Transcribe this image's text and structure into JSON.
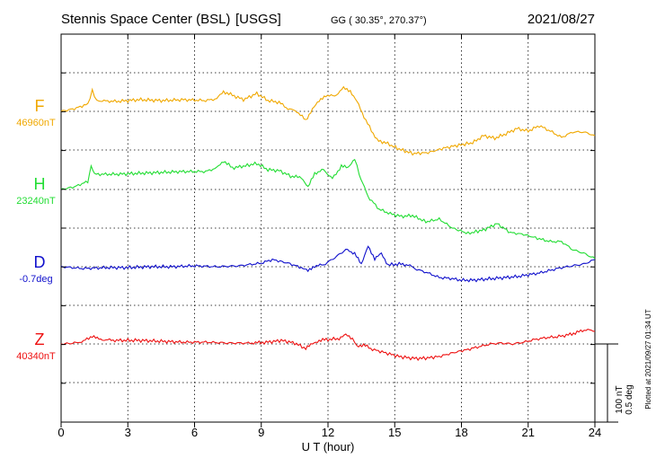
{
  "header": {
    "station": "Stennis Space Center (BSL)",
    "agency": "[USGS]",
    "coords": "GG ( 30.35°, 270.37°)",
    "date": "2021/08/27"
  },
  "scale_bar": {
    "label1": "100 nT",
    "label2": "0.5 deg"
  },
  "plotted_note": "Plotted at 2021/09/27 01:34 UT",
  "chart_data": {
    "type": "line",
    "xlabel": "U T (hour)",
    "xlim": [
      0,
      24
    ],
    "xticks": [
      0,
      3,
      6,
      9,
      12,
      15,
      18,
      21,
      24
    ],
    "ylim": [
      -2.5,
      3.0
    ],
    "series": [
      {
        "name": "F",
        "baseline_label": "46960nT",
        "color": "#f0a800",
        "x": [
          0,
          0.6,
          1.2,
          1.4,
          1.6,
          2.5,
          3.5,
          4.5,
          5.5,
          6.5,
          7.0,
          7.3,
          7.7,
          8.2,
          8.8,
          9.3,
          9.8,
          10.2,
          10.6,
          11.0,
          11.3,
          11.6,
          11.9,
          12.3,
          12.7,
          13.0,
          13.3,
          13.7,
          14.2,
          14.6,
          15.2,
          15.8,
          16.5,
          17.2,
          17.8,
          18.5,
          19.0,
          19.5,
          20.0,
          20.5,
          21.0,
          21.5,
          22.0,
          22.5,
          23.0,
          23.5,
          24.0
        ],
        "values": [
          0.0,
          0.03,
          0.08,
          0.23,
          0.12,
          0.11,
          0.13,
          0.12,
          0.13,
          0.12,
          0.14,
          0.22,
          0.18,
          0.13,
          0.2,
          0.12,
          0.1,
          0.03,
          0.0,
          -0.1,
          0.03,
          0.11,
          0.18,
          0.17,
          0.26,
          0.23,
          0.11,
          -0.1,
          -0.32,
          -0.35,
          -0.42,
          -0.47,
          -0.46,
          -0.41,
          -0.38,
          -0.35,
          -0.27,
          -0.3,
          -0.25,
          -0.19,
          -0.22,
          -0.16,
          -0.22,
          -0.29,
          -0.23,
          -0.23,
          -0.27
        ]
      },
      {
        "name": "H",
        "baseline_label": "23240nT",
        "color": "#22dd33",
        "x": [
          0,
          0.6,
          1.2,
          1.35,
          1.5,
          2.5,
          3.5,
          4.5,
          5.5,
          6.5,
          7.0,
          7.3,
          7.7,
          8.2,
          8.8,
          9.3,
          9.8,
          10.4,
          10.8,
          11.1,
          11.4,
          11.8,
          12.2,
          12.6,
          12.9,
          13.2,
          13.4,
          13.8,
          14.3,
          14.8,
          15.3,
          15.8,
          16.4,
          17.0,
          17.6,
          18.3,
          19.0,
          19.6,
          20.2,
          20.8,
          21.5,
          22.0,
          22.5,
          23.0,
          23.5,
          24.0
        ],
        "values": [
          0.0,
          0.03,
          0.09,
          0.27,
          0.17,
          0.17,
          0.18,
          0.19,
          0.2,
          0.2,
          0.24,
          0.32,
          0.24,
          0.26,
          0.29,
          0.22,
          0.21,
          0.14,
          0.14,
          0.02,
          0.18,
          0.22,
          0.12,
          0.26,
          0.24,
          0.35,
          0.17,
          -0.08,
          -0.22,
          -0.27,
          -0.3,
          -0.29,
          -0.36,
          -0.33,
          -0.43,
          -0.49,
          -0.45,
          -0.38,
          -0.48,
          -0.5,
          -0.55,
          -0.58,
          -0.58,
          -0.67,
          -0.71,
          -0.77
        ]
      },
      {
        "name": "D",
        "baseline_label": "-0.7deg",
        "color": "#1010cc",
        "x": [
          0,
          1,
          2,
          3,
          4,
          5,
          6,
          7,
          8,
          9,
          9.5,
          10.2,
          10.8,
          11.1,
          11.4,
          11.8,
          12.3,
          12.8,
          13.2,
          13.5,
          13.8,
          14.1,
          14.4,
          14.7,
          15.2,
          15.6,
          16.0,
          16.5,
          17.0,
          17.5,
          18.0,
          18.5,
          19.0,
          19.5,
          20.0,
          20.5,
          21.0,
          21.5,
          22.0,
          22.5,
          23.0,
          23.5,
          24.0
        ],
        "values": [
          0.0,
          -0.02,
          -0.01,
          -0.01,
          0.0,
          0.0,
          0.01,
          0.0,
          0.01,
          0.04,
          0.08,
          0.04,
          -0.01,
          -0.05,
          0.01,
          0.02,
          0.1,
          0.19,
          0.15,
          0.02,
          0.24,
          0.08,
          0.15,
          0.02,
          0.03,
          0.02,
          -0.03,
          -0.07,
          -0.12,
          -0.13,
          -0.15,
          -0.15,
          -0.14,
          -0.13,
          -0.12,
          -0.11,
          -0.09,
          -0.07,
          -0.04,
          -0.01,
          0.01,
          0.03,
          0.08
        ]
      },
      {
        "name": "Z",
        "baseline_label": "40340nT",
        "color": "#ee1111",
        "x": [
          0,
          0.6,
          1.0,
          1.4,
          1.7,
          2.5,
          3.5,
          4.5,
          5.5,
          6.5,
          7.5,
          8.5,
          9.3,
          9.9,
          10.5,
          11.0,
          11.3,
          11.6,
          12.0,
          12.5,
          12.8,
          13.1,
          13.3,
          13.6,
          14.0,
          14.6,
          15.2,
          15.8,
          16.3,
          17.0,
          17.6,
          18.3,
          18.8,
          19.3,
          19.8,
          20.3,
          20.8,
          21.3,
          21.8,
          22.3,
          22.8,
          23.2,
          23.6,
          24.0
        ],
        "values": [
          0.0,
          0.01,
          0.03,
          0.09,
          0.05,
          0.04,
          0.04,
          0.03,
          0.02,
          0.02,
          0.01,
          0.01,
          0.02,
          0.04,
          0.01,
          -0.05,
          0.0,
          0.04,
          0.05,
          0.06,
          0.1,
          0.06,
          -0.02,
          -0.01,
          -0.06,
          -0.1,
          -0.14,
          -0.16,
          -0.16,
          -0.14,
          -0.1,
          -0.06,
          -0.03,
          0.0,
          0.01,
          0.0,
          0.02,
          0.05,
          0.07,
          0.08,
          0.1,
          0.13,
          0.16,
          0.14
        ]
      }
    ]
  }
}
